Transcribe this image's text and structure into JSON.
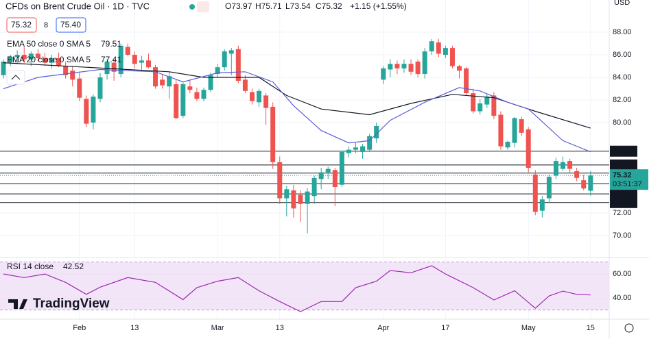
{
  "chart_data": {
    "type": "candlestick",
    "header": {
      "title": "CFDs on Brent Crude Oil · 1D · TVC",
      "open": "O73.97",
      "high": "H75.71",
      "low": "L73.54",
      "close": "C75.32",
      "change": "+1.15 (+1.55%)"
    },
    "legend": {
      "sell": "75.32",
      "spread": "8",
      "buy": "75.40",
      "ema50_name": "EMA 50 close 0 SMA 5",
      "ema50_value": "79.51",
      "ema20_name": "EMA 20 close 0 SMA 5",
      "ema20_value": "77.41",
      "rsi_name": "RSI 14 close",
      "rsi_value": "42.52"
    },
    "currency": "USD",
    "brand": "TradingView",
    "candles": {
      "open": [
        84.2,
        85.4,
        85.8,
        86.0,
        85.6,
        86.1,
        85.7,
        85.3,
        85.7,
        85.0,
        84.6,
        83.9,
        82.1,
        80.0,
        82.1,
        84.3,
        85.3,
        84.3,
        86.7,
        86.0,
        85.3,
        85.5,
        84.9,
        83.8,
        83.2,
        83.4,
        80.6,
        83.2,
        82.7,
        82.1,
        82.9,
        84.3,
        84.9,
        86.1,
        86.5,
        83.8,
        82.7,
        81.8,
        82.4,
        81.4,
        76.5,
        73.3,
        74.0,
        73.6,
        72.8,
        73.5,
        75.0,
        75.6,
        75.8,
        74.5,
        77.3,
        77.6,
        77.4,
        77.6,
        78.6,
        83.8,
        84.7,
        85.2,
        84.8,
        85.2,
        85.4,
        84.3,
        86.3,
        87.1,
        86.0,
        86.6,
        85.0,
        84.8,
        82.6,
        81.0,
        81.6,
        82.4,
        80.7,
        77.8,
        78.2,
        80.3,
        79.4,
        75.4,
        72.2,
        73.3,
        75.3,
        75.9,
        76.6,
        75.7,
        74.9,
        73.97
      ],
      "high": [
        85.6,
        86.0,
        86.4,
        86.7,
        86.3,
        86.5,
        86.2,
        86.0,
        86.2,
        85.4,
        85.0,
        84.4,
        82.4,
        82.5,
        84.4,
        85.6,
        85.6,
        87.0,
        87.0,
        86.3,
        85.9,
        86.1,
        85.1,
        84.3,
        84.5,
        83.8,
        83.6,
        83.8,
        83.1,
        83.1,
        84.4,
        85.2,
        86.5,
        86.6,
        86.8,
        84.2,
        83.0,
        83.0,
        82.6,
        81.8,
        77.0,
        74.4,
        74.5,
        74.0,
        74.2,
        75.3,
        76.0,
        76.1,
        76.0,
        77.5,
        77.9,
        78.2,
        78.1,
        79.0,
        80.0,
        85.0,
        85.6,
        85.5,
        85.6,
        85.6,
        85.6,
        86.6,
        87.4,
        87.4,
        86.8,
        86.8,
        85.1,
        84.9,
        83.0,
        82.1,
        82.5,
        82.7,
        81.0,
        78.4,
        80.5,
        80.5,
        79.6,
        75.8,
        73.5,
        75.4,
        76.9,
        77.0,
        76.8,
        76.0,
        75.4,
        75.71
      ],
      "low": [
        83.9,
        85.0,
        85.2,
        85.3,
        85.0,
        85.4,
        85.0,
        84.8,
        84.9,
        83.9,
        83.2,
        81.9,
        79.6,
        79.4,
        81.8,
        83.8,
        83.7,
        84.0,
        85.9,
        84.8,
        84.6,
        84.8,
        83.0,
        83.0,
        82.1,
        80.3,
        80.4,
        82.6,
        81.9,
        81.9,
        82.7,
        84.0,
        84.6,
        84.2,
        83.5,
        82.6,
        81.6,
        81.4,
        79.8,
        75.9,
        72.8,
        71.7,
        71.6,
        71.2,
        70.2,
        72.8,
        74.1,
        75.0,
        72.6,
        74.3,
        76.9,
        77.3,
        76.8,
        77.4,
        78.2,
        83.4,
        84.0,
        84.3,
        84.4,
        84.2,
        84.0,
        83.9,
        86.0,
        85.8,
        85.7,
        84.8,
        83.9,
        82.4,
        80.8,
        80.7,
        81.3,
        80.3,
        77.6,
        77.6,
        77.8,
        78.8,
        75.6,
        71.8,
        71.6,
        72.9,
        75.0,
        75.7,
        75.6,
        74.8,
        74.0,
        73.54
      ],
      "close": [
        85.4,
        85.8,
        86.0,
        85.6,
        86.1,
        85.7,
        85.3,
        85.7,
        85.0,
        84.2,
        83.8,
        82.2,
        79.9,
        82.3,
        84.0,
        85.4,
        84.5,
        86.8,
        86.0,
        85.2,
        85.5,
        84.9,
        83.2,
        83.3,
        84.1,
        80.4,
        83.4,
        82.9,
        82.1,
        82.9,
        84.2,
        84.9,
        86.3,
        86.4,
        83.7,
        82.8,
        81.9,
        82.8,
        81.3,
        76.5,
        73.3,
        74.1,
        72.4,
        72.8,
        73.9,
        75.1,
        75.6,
        75.9,
        74.3,
        77.4,
        77.6,
        77.8,
        77.9,
        78.8,
        79.7,
        84.8,
        85.2,
        84.8,
        85.2,
        84.5,
        84.3,
        86.3,
        87.2,
        86.1,
        86.6,
        85.0,
        84.6,
        82.6,
        81.0,
        81.7,
        82.3,
        80.6,
        77.9,
        78.3,
        80.4,
        79.1,
        76.0,
        72.1,
        73.2,
        75.2,
        76.6,
        76.5,
        75.9,
        75.1,
        74.17,
        75.32
      ],
      "up_color": "#26a69a",
      "down_color": "#ef5350"
    },
    "ema50": {
      "color": "#131722",
      "x": [
        0,
        24,
        29,
        37,
        41,
        46,
        53,
        59,
        65,
        71,
        77,
        85
      ],
      "values": [
        85.3,
        84.5,
        84.0,
        84.0,
        82.4,
        81.2,
        80.7,
        81.7,
        82.5,
        82.2,
        81.0,
        79.51
      ]
    },
    "ema20": {
      "color": "#5b5fd6",
      "x": [
        0,
        5,
        14,
        22,
        26,
        31,
        35,
        39,
        42,
        46,
        50,
        53,
        56,
        61,
        66,
        69,
        73,
        76,
        81,
        85
      ],
      "values": [
        83.0,
        84.0,
        84.7,
        84.5,
        83.6,
        84.4,
        84.5,
        83.6,
        81.5,
        79.3,
        78.2,
        78.4,
        80.2,
        81.8,
        83.1,
        82.8,
        81.8,
        81.2,
        78.4,
        77.41
      ]
    },
    "levels": {
      "color": "#131722",
      "values": [
        77.47,
        76.25,
        75.53,
        74.58,
        73.69,
        72.92
      ]
    },
    "last_price": {
      "value": 75.32,
      "countdown": "03:51:37",
      "color": "#26a69a"
    },
    "xlim": [
      -0.5,
      87.7
    ],
    "ylim": [
      68.12,
      90.85
    ],
    "yticks": [
      {
        "value": 70,
        "label": "70.00"
      },
      {
        "value": 72,
        "label": "72.00"
      },
      {
        "value": 80,
        "label": "80.00"
      },
      {
        "value": 82,
        "label": "82.00"
      },
      {
        "value": 84,
        "label": "84.00"
      },
      {
        "value": 86,
        "label": "86.00"
      },
      {
        "value": 88,
        "label": "88.00"
      }
    ],
    "xticks": [
      {
        "value": 11,
        "label": "Feb"
      },
      {
        "value": 19,
        "label": "13"
      },
      {
        "value": 31,
        "label": "Mar"
      },
      {
        "value": 40,
        "label": "13"
      },
      {
        "value": 55,
        "label": "Apr"
      },
      {
        "value": 64,
        "label": "17"
      },
      {
        "value": 76,
        "label": "May"
      },
      {
        "value": 85,
        "label": "15"
      }
    ],
    "rsi": {
      "color": "#9c27b0",
      "x": [
        0,
        3,
        6,
        9,
        12,
        14,
        18,
        22,
        26,
        28,
        31,
        34,
        37,
        40,
        43,
        46,
        49,
        51,
        54,
        56,
        59,
        62,
        64,
        68,
        71,
        74,
        77,
        79,
        81,
        83,
        85
      ],
      "values": [
        60,
        57,
        60,
        53,
        43,
        49,
        57,
        53,
        38.6,
        48.6,
        54,
        57,
        46,
        37,
        28.6,
        37,
        37,
        48.6,
        54,
        62.9,
        61,
        66.9,
        60,
        48.6,
        38.3,
        46,
        31.4,
        41.7,
        45.7,
        43,
        42.52
      ],
      "band": [
        70,
        30
      ],
      "band_color": "#f3e5f8",
      "ylim": [
        22.9,
        72.6
      ],
      "yticks": [
        {
          "value": 40,
          "label": "40.00"
        },
        {
          "value": 60,
          "label": "60.00"
        }
      ]
    }
  }
}
